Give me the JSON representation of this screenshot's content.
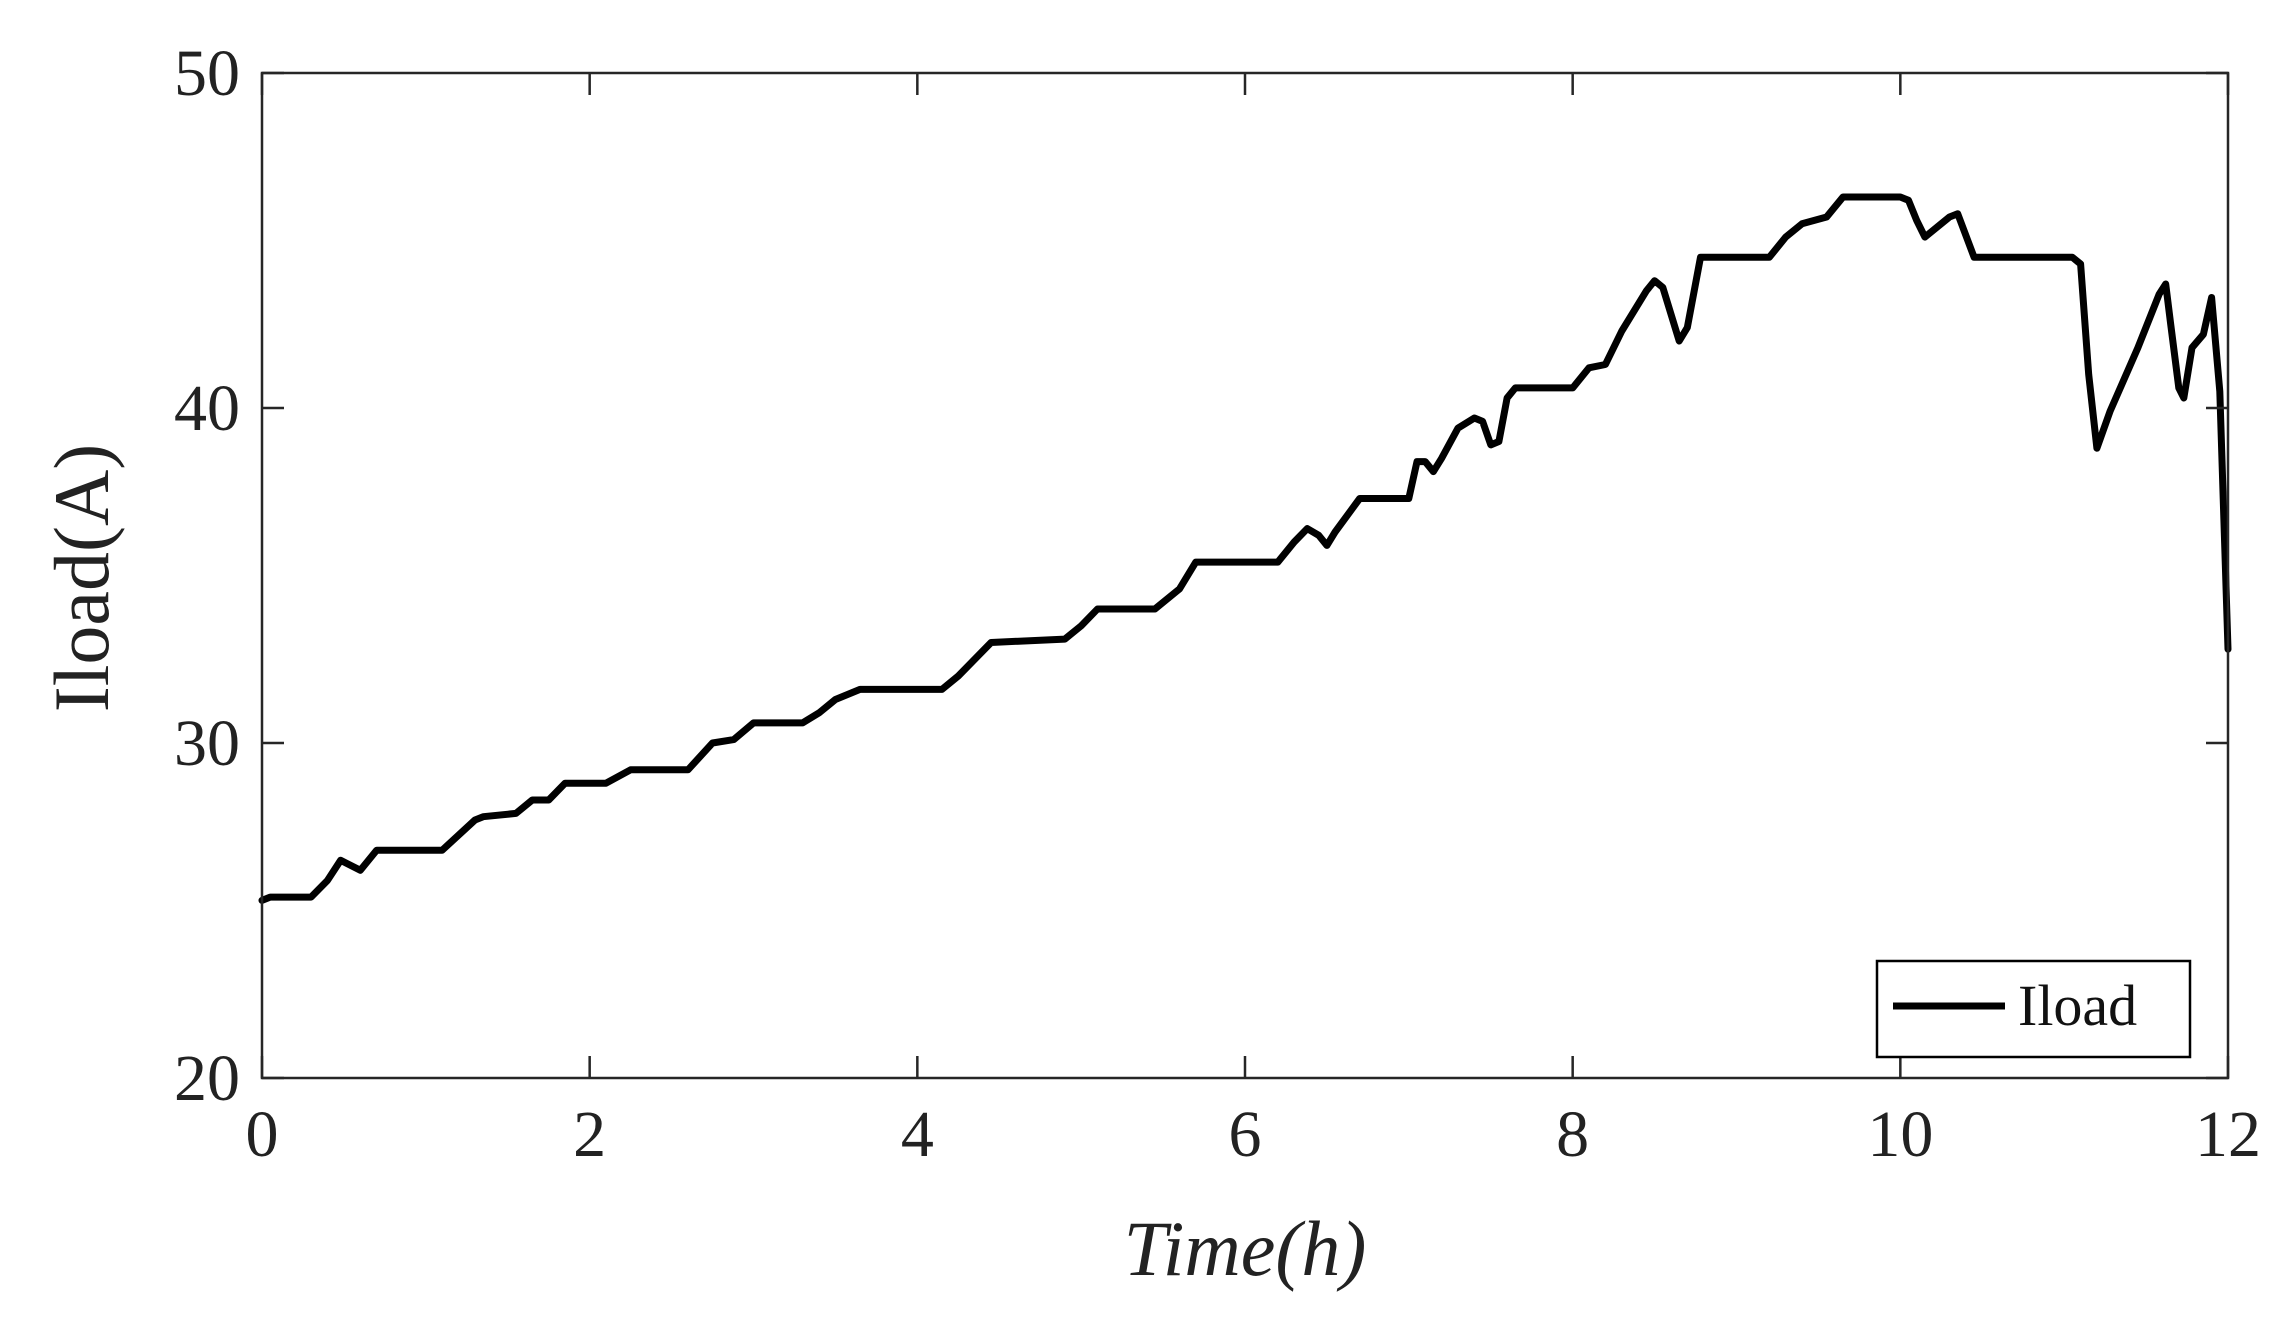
{
  "chart_data": {
    "type": "line",
    "xlabel": "Time(h)",
    "ylabel": "Iload(A)",
    "xlim": [
      0,
      12
    ],
    "ylim": [
      20,
      50
    ],
    "xticks": [
      "0",
      "2",
      "4",
      "6",
      "8",
      "10",
      "12"
    ],
    "yticks": [
      "20",
      "30",
      "40",
      "50"
    ],
    "grid": false,
    "legend_position": "bottom-right",
    "series": [
      {
        "name": "Iload",
        "color": "#000000",
        "x": [
          0,
          0.05,
          0.3,
          0.4,
          0.48,
          0.52,
          0.6,
          0.7,
          1.1,
          1.3,
          1.35,
          1.55,
          1.65,
          1.75,
          1.85,
          2.1,
          2.25,
          2.6,
          2.75,
          2.88,
          3.0,
          3.3,
          3.4,
          3.5,
          3.65,
          4.15,
          4.25,
          4.45,
          4.9,
          5.0,
          5.1,
          5.45,
          5.6,
          5.7,
          6.0,
          6.2,
          6.3,
          6.38,
          6.45,
          6.5,
          6.55,
          6.7,
          7.0,
          7.05,
          7.1,
          7.15,
          7.2,
          7.3,
          7.4,
          7.45,
          7.5,
          7.55,
          7.6,
          7.65,
          8.0,
          8.1,
          8.2,
          8.3,
          8.45,
          8.5,
          8.55,
          8.65,
          8.7,
          8.78,
          9.2,
          9.3,
          9.4,
          9.55,
          9.65,
          10.0,
          10.05,
          10.1,
          10.15,
          10.3,
          10.35,
          10.45,
          11.05,
          11.1,
          11.15,
          11.2,
          11.28,
          11.45,
          11.58,
          11.62,
          11.65,
          11.7,
          11.73,
          11.78,
          11.85,
          11.9,
          11.95,
          12.0
        ],
        "y": [
          25.3,
          25.4,
          25.4,
          25.9,
          26.5,
          26.4,
          26.2,
          26.8,
          26.8,
          27.7,
          27.8,
          27.9,
          28.3,
          28.3,
          28.8,
          28.8,
          29.2,
          29.2,
          30.0,
          30.1,
          30.6,
          30.6,
          30.9,
          31.3,
          31.6,
          31.6,
          32.0,
          33.0,
          33.1,
          33.5,
          34.0,
          34.0,
          34.6,
          35.4,
          35.4,
          35.4,
          36.0,
          36.4,
          36.2,
          35.9,
          36.3,
          37.3,
          37.3,
          38.4,
          38.4,
          38.1,
          38.5,
          39.4,
          39.7,
          39.6,
          38.9,
          39.0,
          40.3,
          40.6,
          40.6,
          41.2,
          41.3,
          42.3,
          43.5,
          43.8,
          43.6,
          42.0,
          42.4,
          44.5,
          44.5,
          45.1,
          45.5,
          45.7,
          46.3,
          46.3,
          46.2,
          45.6,
          45.1,
          45.7,
          45.8,
          44.5,
          44.5,
          44.3,
          41.0,
          38.8,
          39.9,
          41.8,
          43.4,
          43.7,
          42.5,
          40.6,
          40.3,
          41.8,
          42.2,
          43.3,
          40.5,
          32.8
        ]
      }
    ]
  }
}
